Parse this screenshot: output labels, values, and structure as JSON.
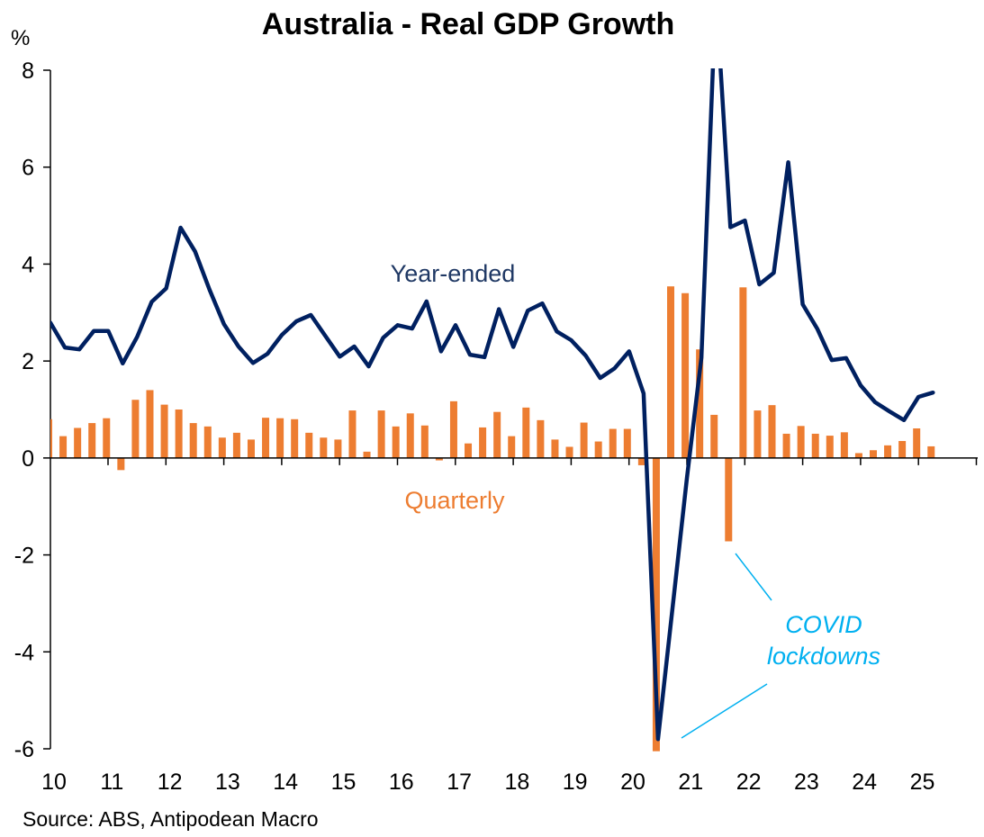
{
  "chart_data": {
    "type": "bar+line",
    "title": "Australia - Real GDP Growth",
    "ylabel": "%",
    "ylim": [
      -6,
      8
    ],
    "yticks": [
      8,
      6,
      4,
      2,
      0,
      -2,
      -4,
      -6
    ],
    "xtick_labels": [
      "10",
      "11",
      "12",
      "13",
      "14",
      "15",
      "16",
      "17",
      "18",
      "19",
      "20",
      "21",
      "22",
      "23",
      "24",
      "25"
    ],
    "start_quarter": "2009Q4",
    "end_quarter": "2025Q1",
    "series": [
      {
        "name": "Quarterly",
        "kind": "bar",
        "color": "#ed7d31",
        "values": [
          0.8,
          0.45,
          0.62,
          0.72,
          0.82,
          -0.25,
          1.2,
          1.4,
          1.1,
          1.0,
          0.72,
          0.65,
          0.42,
          0.52,
          0.38,
          0.83,
          0.82,
          0.8,
          0.52,
          0.42,
          0.38,
          0.98,
          0.13,
          0.98,
          0.65,
          0.92,
          0.67,
          -0.05,
          1.17,
          0.3,
          0.63,
          0.95,
          0.45,
          1.04,
          0.78,
          0.38,
          0.23,
          0.73,
          0.34,
          0.6,
          0.6,
          -0.15,
          -6.05,
          3.54,
          3.4,
          2.24,
          0.89,
          -1.72,
          3.52,
          0.98,
          1.09,
          0.5,
          0.66,
          0.5,
          0.46,
          0.53,
          0.1,
          0.16,
          0.26,
          0.35,
          0.61,
          0.24
        ]
      },
      {
        "name": "Year-ended",
        "kind": "line",
        "color": "#002060",
        "values": [
          2.79,
          2.28,
          2.24,
          2.62,
          2.62,
          1.95,
          2.5,
          3.22,
          3.5,
          4.75,
          4.26,
          3.47,
          2.76,
          2.3,
          1.96,
          2.15,
          2.54,
          2.82,
          2.95,
          2.52,
          2.09,
          2.3,
          1.89,
          2.48,
          2.74,
          2.67,
          3.23,
          2.2,
          2.74,
          2.13,
          2.08,
          3.07,
          2.29,
          3.04,
          3.19,
          2.61,
          2.43,
          2.11,
          1.65,
          1.85,
          2.2,
          1.33,
          -5.8,
          -3.1,
          -0.4,
          2.07,
          9.6,
          4.76,
          4.9,
          3.58,
          3.82,
          6.1,
          3.17,
          2.67,
          2.02,
          2.06,
          1.5,
          1.15,
          0.96,
          0.78,
          1.26,
          1.35
        ]
      }
    ],
    "annotations": {
      "line_label": "Year-ended",
      "bar_label": "Quarterly",
      "covid_line1": "COVID",
      "covid_line2": "lockdowns",
      "covid_color": "#00b0f0"
    },
    "source": "Source: ABS, Antipodean Macro"
  }
}
